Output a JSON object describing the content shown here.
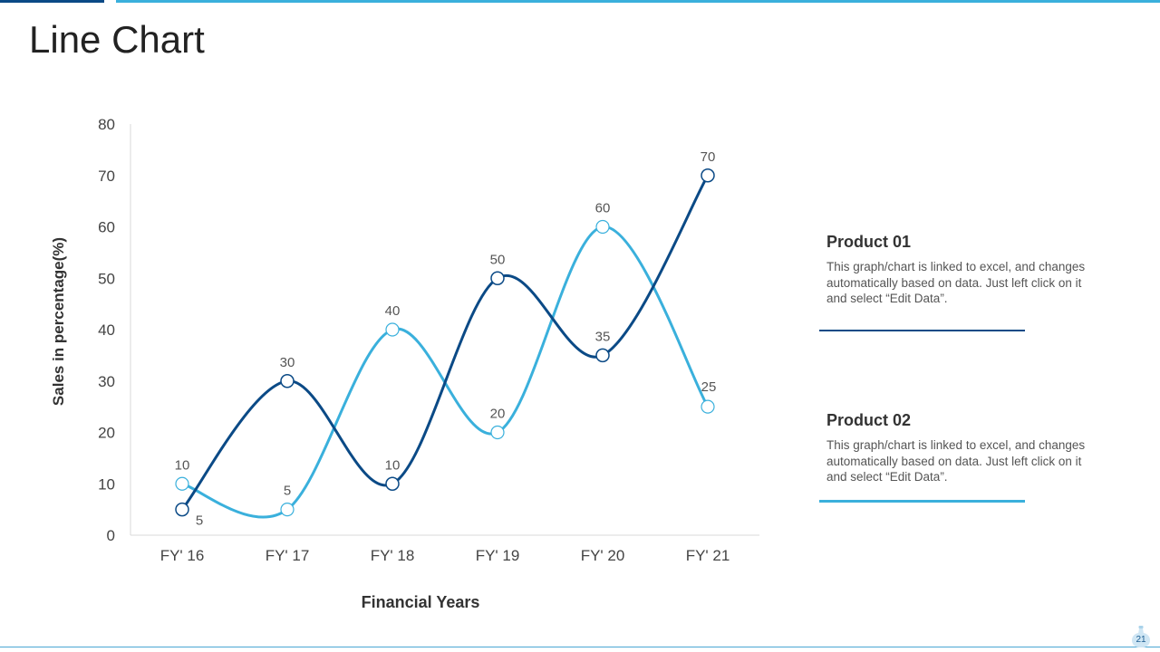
{
  "page": {
    "title": "Line Chart",
    "page_number": "21"
  },
  "colors": {
    "product_01": "#0b4a86",
    "product_02": "#3ab0dc",
    "accent_dark": "#0b4a86",
    "accent_light": "#3ab0dc"
  },
  "legend": {
    "items": [
      {
        "title": "Product 01",
        "description": "This graph/chart is linked to excel, and changes automatically based on data. Just left click on it and select “Edit Data”."
      },
      {
        "title": "Product 02",
        "description": "This graph/chart is linked to excel, and changes automatically based on data. Just left click on it and select “Edit Data”."
      }
    ]
  },
  "chart_data": {
    "type": "line",
    "title": "",
    "xlabel": "Financial Years",
    "ylabel": "Sales in percentage(%)",
    "categories": [
      "FY' 16",
      "FY' 17",
      "FY' 18",
      "FY' 19",
      "FY' 20",
      "FY' 21"
    ],
    "ylim": [
      0,
      80
    ],
    "yticks": [
      0,
      10,
      20,
      30,
      40,
      50,
      60,
      70,
      80
    ],
    "grid": false,
    "smooth": true,
    "series": [
      {
        "name": "Product 01",
        "values": [
          5,
          30,
          10,
          50,
          35,
          70
        ]
      },
      {
        "name": "Product 02",
        "values": [
          10,
          5,
          40,
          20,
          60,
          25
        ]
      }
    ]
  }
}
